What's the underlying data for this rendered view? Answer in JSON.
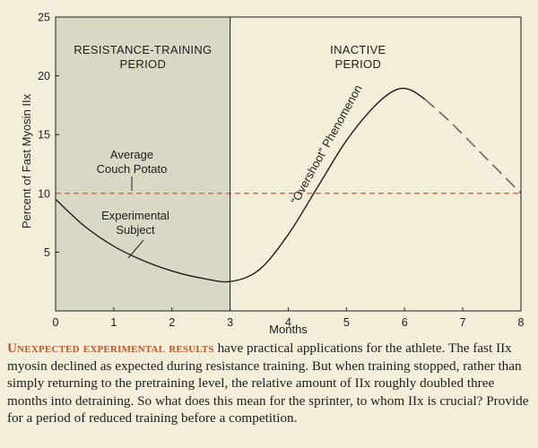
{
  "chart_data": {
    "type": "line",
    "xlabel": "Months",
    "ylabel": "Percent of Fast Myosin IIx",
    "xlim": [
      0,
      8
    ],
    "ylim": [
      0,
      25
    ],
    "x_ticks": [
      "0",
      "1",
      "2",
      "3",
      "4",
      "5",
      "6",
      "7",
      "8"
    ],
    "y_ticks": [
      "5",
      "10",
      "15",
      "20",
      "25"
    ],
    "regions": [
      {
        "label_lines": [
          "RESISTANCE-TRAINING",
          "PERIOD"
        ],
        "x_range": [
          0,
          3
        ],
        "shaded": true
      },
      {
        "label_lines": [
          "INACTIVE",
          "PERIOD"
        ],
        "x_range": [
          3,
          8
        ],
        "shaded": false
      }
    ],
    "reference_line": {
      "y": 10,
      "label_lines": [
        "Average",
        "Couch Potato"
      ],
      "style": "dashed",
      "color": "#d9682f"
    },
    "series": [
      {
        "name": "Experimental Subject",
        "label_lines": [
          "Experimental",
          "Subject"
        ],
        "solid_points": [
          [
            0,
            9.5
          ],
          [
            0.5,
            7.2
          ],
          [
            1,
            5.5
          ],
          [
            1.5,
            4.3
          ],
          [
            2,
            3.4
          ],
          [
            2.5,
            2.8
          ],
          [
            3,
            2.5
          ],
          [
            3.5,
            3.5
          ],
          [
            4,
            6.5
          ],
          [
            4.5,
            10.5
          ],
          [
            5,
            14.5
          ],
          [
            5.5,
            17.5
          ],
          [
            5.85,
            18.8
          ],
          [
            6.1,
            18.8
          ],
          [
            6.35,
            18.0
          ]
        ],
        "dashed_points": [
          [
            6.35,
            18.0
          ],
          [
            6.8,
            16.0
          ],
          [
            7.3,
            13.5
          ],
          [
            7.8,
            11.0
          ],
          [
            8,
            10.0
          ]
        ]
      }
    ],
    "annotations": [
      {
        "text": "“Overshoot” Phenomenon",
        "at": [
          4.9,
          14.0
        ]
      }
    ],
    "colors": {
      "shading": "#d9d8c5",
      "curve": "#1e1e1e",
      "dashed_curve": "#666666"
    }
  },
  "caption": {
    "lead": "Unexpected experimental results",
    "body": " have practical applications for the athlete. The fast IIx myosin declined as expected during resistance training. But when training stopped, rather than simply returning to the pretraining level, the relative amount of IIx roughly doubled three months into detraining. So what does this mean for the sprinter, to whom IIx is crucial? Provide for a period of reduced training before a competition."
  }
}
